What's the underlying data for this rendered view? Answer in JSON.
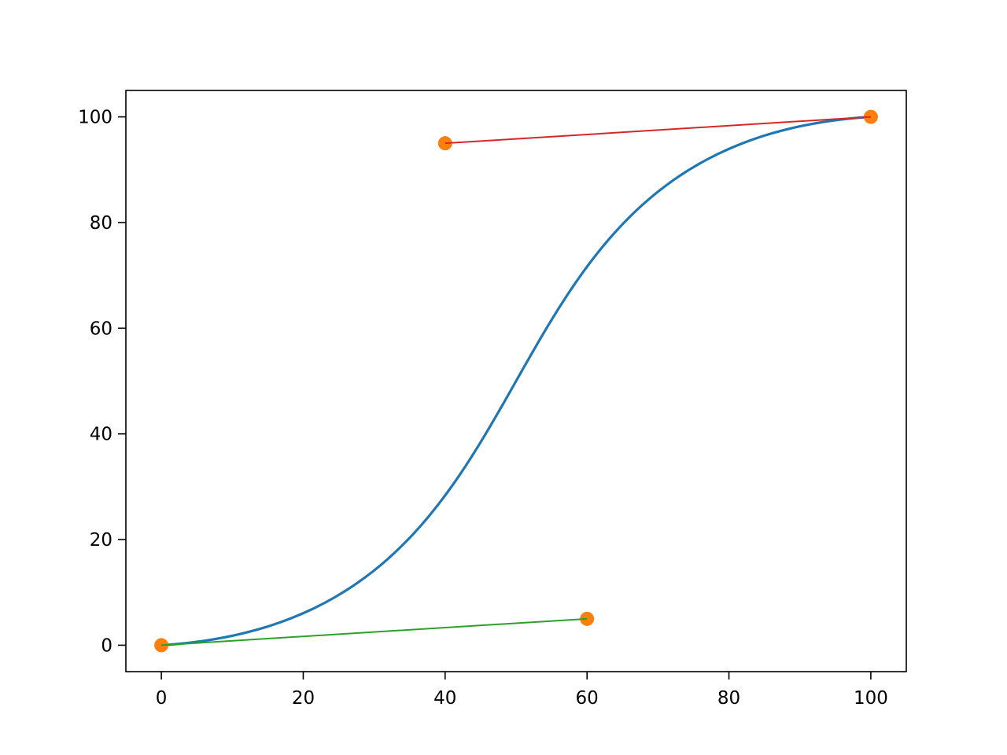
{
  "chart_data": {
    "type": "line",
    "title": "",
    "xlabel": "",
    "ylabel": "",
    "xlim": [
      -5,
      105
    ],
    "ylim": [
      -5,
      105
    ],
    "grid": false,
    "x_ticks": [
      "0",
      "20",
      "40",
      "60",
      "80",
      "100"
    ],
    "y_ticks": [
      "0",
      "20",
      "40",
      "60",
      "80",
      "100"
    ],
    "x_tick_values": [
      0,
      20,
      40,
      60,
      80,
      100
    ],
    "y_tick_values": [
      0,
      20,
      40,
      60,
      80,
      100
    ],
    "bezier_curve": {
      "kind": "cubic-bezier",
      "control_points": [
        [
          0,
          0
        ],
        [
          60,
          5
        ],
        [
          40,
          95
        ],
        [
          100,
          100
        ]
      ],
      "color": "#1f77b4"
    },
    "control_markers": {
      "points": [
        [
          0,
          0
        ],
        [
          60,
          5
        ],
        [
          40,
          95
        ],
        [
          100,
          100
        ]
      ],
      "color": "#ff7f0e"
    },
    "handle_lines": [
      {
        "points": [
          [
            0,
            0
          ],
          [
            60,
            5
          ]
        ],
        "color": "#2ca02c"
      },
      {
        "points": [
          [
            40,
            95
          ],
          [
            100,
            100
          ]
        ],
        "color": "#d62728"
      }
    ]
  }
}
